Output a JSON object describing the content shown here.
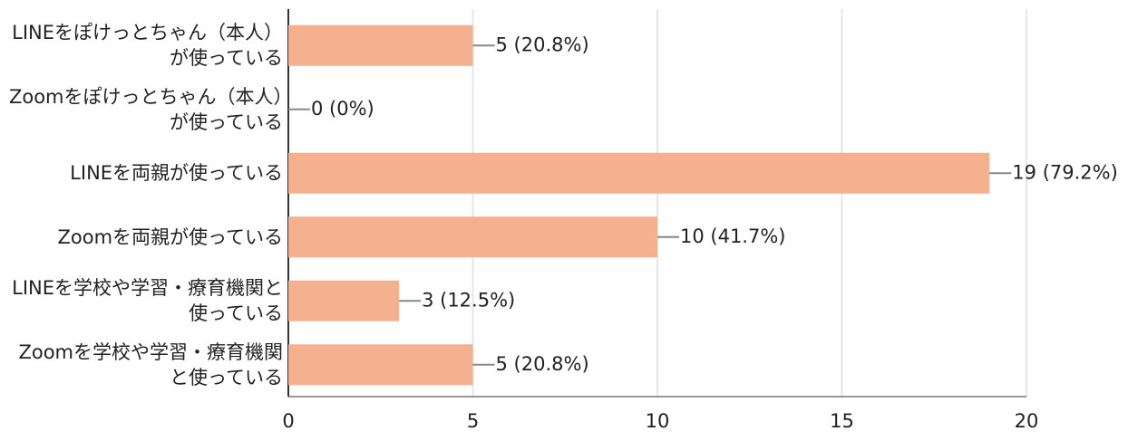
{
  "chart_data": {
    "type": "bar",
    "orientation": "horizontal",
    "categories": [
      "LINEをぽけっとちゃん（本人）が使っている",
      "Zoomをぽけっとちゃん（本人）が使っている",
      "LINEを両親が使っている",
      "Zoomを両親が使っている",
      "LINEを学校や学習・療育機関と使っている",
      "Zoomを学校や学習・療育機関と使っている"
    ],
    "values": [
      5,
      0,
      19,
      10,
      3,
      5
    ],
    "value_labels": [
      "5 (20.8%)",
      "0 (0%)",
      "19 (79.2%)",
      "10 (41.7%)",
      "3 (12.5%)",
      "5 (20.8%)"
    ],
    "color": "#f4b08f",
    "xlim": [
      0,
      20
    ],
    "xticks": [
      0,
      5,
      10,
      15,
      20
    ],
    "grid": true
  }
}
